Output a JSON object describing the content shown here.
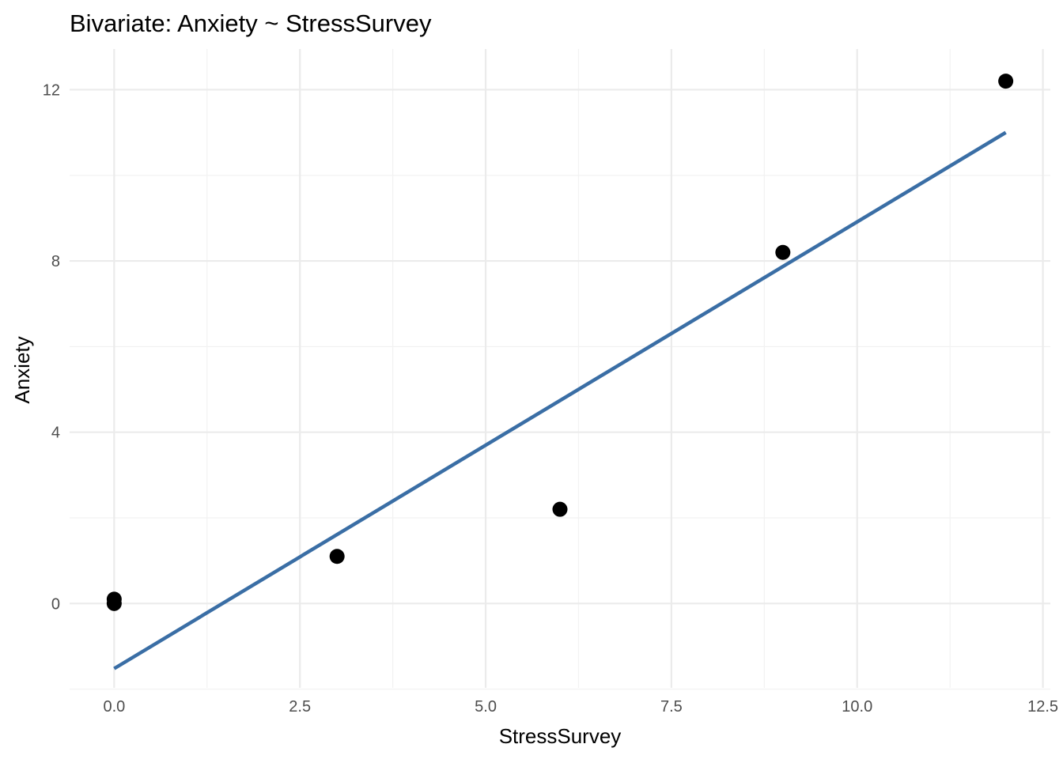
{
  "chart_data": {
    "type": "scatter",
    "title": "Bivariate: Anxiety ~ StressSurvey",
    "xlabel": "StressSurvey",
    "ylabel": "Anxiety",
    "xlim": [
      -0.6,
      12.6
    ],
    "ylim": [
      -1.97,
      12.95
    ],
    "x_ticks": [
      0.0,
      2.5,
      5.0,
      7.5,
      10.0,
      12.5
    ],
    "x_tick_labels": [
      "0.0",
      "2.5",
      "5.0",
      "7.5",
      "10.0",
      "12.5"
    ],
    "x_minor_ticks": [
      1.25,
      3.75,
      6.25,
      8.75,
      11.25
    ],
    "y_ticks": [
      0,
      4,
      8,
      12
    ],
    "y_tick_labels": [
      "0",
      "4",
      "8",
      "12"
    ],
    "y_minor_ticks": [
      -2,
      2,
      6,
      10
    ],
    "grid": true,
    "points": [
      {
        "x": 0,
        "y": 0.0
      },
      {
        "x": 0,
        "y": 0.1
      },
      {
        "x": 3,
        "y": 1.1
      },
      {
        "x": 6,
        "y": 2.2
      },
      {
        "x": 9,
        "y": 8.2
      },
      {
        "x": 12,
        "y": 12.2
      }
    ],
    "fit_line": {
      "x": [
        0,
        12
      ],
      "y": [
        -1.52,
        11.0
      ]
    },
    "colors": {
      "points": "#000000",
      "fit_line": "#3a6ea5",
      "grid_major": "#ebebeb",
      "grid_minor": "#f2f2f2",
      "tick_label": "#4d4d4d"
    }
  }
}
